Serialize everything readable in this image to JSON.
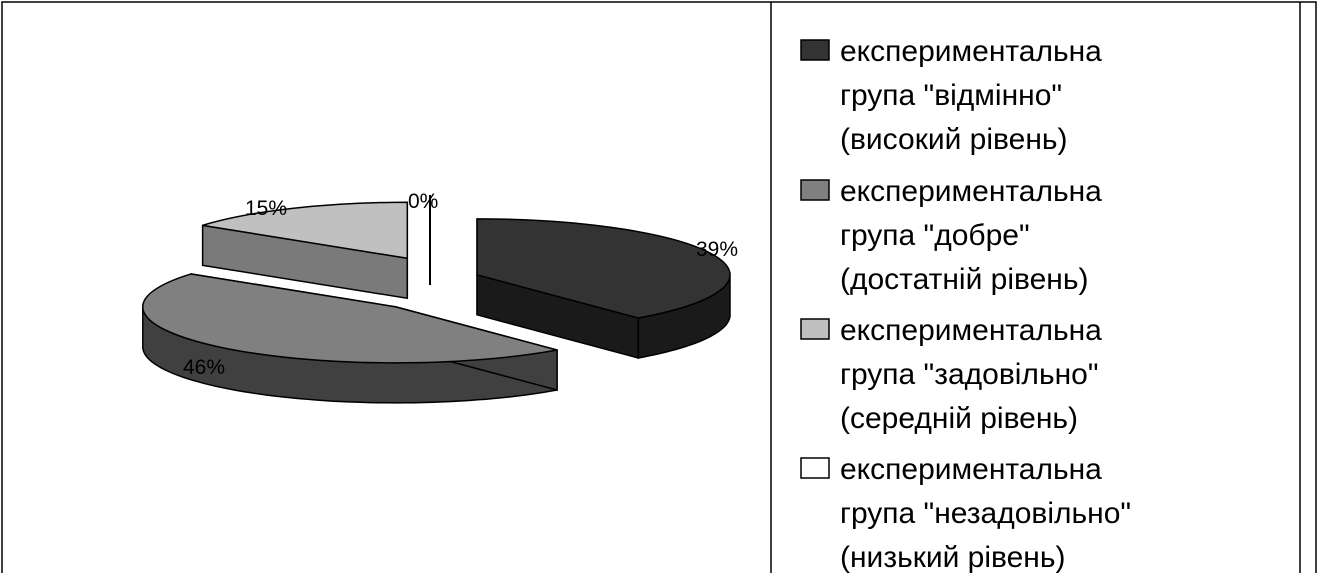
{
  "chart_data": {
    "type": "pie",
    "style": "3d-exploded",
    "categories": [
      "експериментальна група \"відмінно\" (високий рівень)",
      "експериментальна група \"добре\" (достатній рівень)",
      "експериментальна група \"задовільно\" (середній рівень)",
      "експериментальна група \"незадовільно\" (низький рівень)"
    ],
    "values": [
      39,
      46,
      15,
      0
    ],
    "data_labels": [
      "39%",
      "46%",
      "15%",
      "0%"
    ],
    "legend": {
      "position": "right",
      "entries": [
        {
          "lines": [
            "експериментальна",
            "група \"відмінно\"",
            "(високий рівень)"
          ],
          "color": "#333333"
        },
        {
          "lines": [
            "експериментальна",
            "група \"добре\"",
            "(достатній рівень)"
          ],
          "color": "#808080"
        },
        {
          "lines": [
            "експериментальна",
            "група \"задовільно\"",
            "(середній рівень)"
          ],
          "color": "#c0c0c0"
        },
        {
          "lines": [
            "експериментальна",
            "група \"незадовільно\"",
            "(низький рівень)"
          ],
          "color": "#ffffff"
        }
      ]
    },
    "colors": [
      "#333333",
      "#808080",
      "#c0c0c0",
      "#ffffff"
    ]
  }
}
